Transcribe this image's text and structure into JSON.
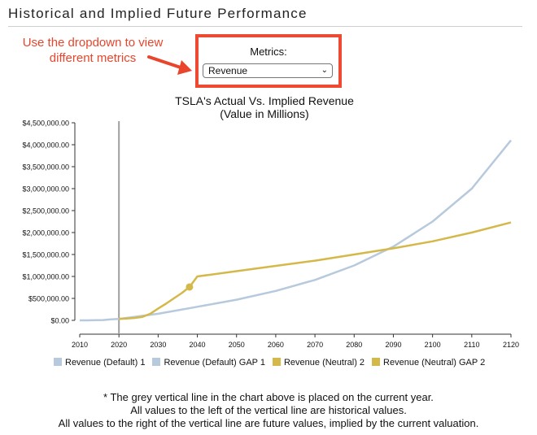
{
  "header": {
    "title": "Historical and Implied Future Performance"
  },
  "annotation": {
    "line1": "Use the dropdown to view",
    "line2": "different metrics",
    "color": "#e8452c"
  },
  "metrics": {
    "label": "Metrics:",
    "selected": "Revenue",
    "box_color": "#ee4a33"
  },
  "footnotes": {
    "line1": "* The grey vertical line in the chart above is placed on the current year.",
    "line2": "All values to the left of the vertical line are historical values.",
    "line3": "All values to the right of the vertical line are future values, implied by the current valuation."
  },
  "chart_data": {
    "type": "line",
    "title": "TSLA's Actual Vs. Implied Revenue",
    "subtitle": "(Value in Millions)",
    "xlabel": "",
    "ylabel": "",
    "xlim": [
      2010,
      2120
    ],
    "ylim": [
      0,
      4500000
    ],
    "x_ticks": [
      "2010",
      "2020",
      "2030",
      "2040",
      "2050",
      "2060",
      "2070",
      "2080",
      "2090",
      "2100",
      "2110",
      "2120"
    ],
    "y_ticks": [
      "$0.00",
      "$500,000.00",
      "$1,000,000.00",
      "$1,500,000.00",
      "$2,000,000.00",
      "$2,500,000.00",
      "$3,000,000.00",
      "$3,500,000.00",
      "$4,000,000.00",
      "$4,500,000.00"
    ],
    "current_year": 2020,
    "current_year_line_color": "#a0a0a0",
    "grid": false,
    "legend_position": "bottom",
    "series": [
      {
        "name": "Revenue (Default) 1",
        "color": "#b7c9dc",
        "x": [
          2010,
          2012,
          2014,
          2016,
          2018,
          2020
        ],
        "y": [
          100,
          400,
          3200,
          7000,
          21500,
          31500
        ]
      },
      {
        "name": "Revenue (Default) GAP 1",
        "color": "#b7c9dc",
        "x": [
          2020,
          2030,
          2040,
          2050,
          2060,
          2070,
          2080,
          2090,
          2100,
          2110,
          2120
        ],
        "y": [
          31500,
          150000,
          310000,
          470000,
          670000,
          920000,
          1250000,
          1680000,
          2250000,
          3000000,
          4100000
        ]
      },
      {
        "name": "Revenue (Neutral) 2",
        "color": "#d4b94a",
        "x": [
          2020,
          2022,
          2024,
          2026,
          2028,
          2030,
          2032,
          2034,
          2036,
          2038
        ],
        "y": [
          31500,
          40000,
          55000,
          80000,
          150000,
          270000,
          380000,
          500000,
          620000,
          760000
        ]
      },
      {
        "name": "Revenue (Neutral) GAP 2",
        "color": "#d4b94a",
        "x": [
          2038,
          2040,
          2050,
          2060,
          2070,
          2080,
          2090,
          2100,
          2110,
          2120
        ],
        "y": [
          760000,
          1000000,
          1120000,
          1240000,
          1360000,
          1500000,
          1640000,
          1800000,
          2000000,
          2230000
        ]
      }
    ],
    "marker": {
      "x": 2038,
      "y": 760000,
      "color": "#d4b94a"
    }
  }
}
